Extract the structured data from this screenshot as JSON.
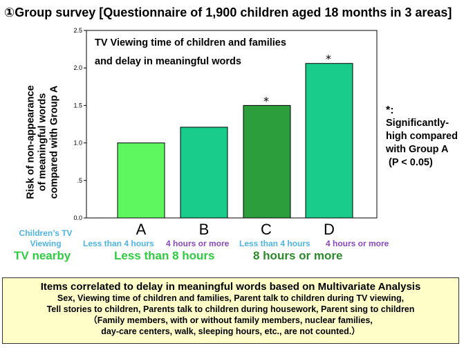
{
  "title": "①Group survey [Questionnaire of 1,900 children aged 18 months in 3 areas]",
  "chart_data": {
    "type": "bar",
    "title_line1": "TV Viewing time of children and families",
    "title_line2": "and delay in meaningful words",
    "ylabel_lines": [
      "Risk of non-appearance",
      "of meaningful words",
      "compared with Group A"
    ],
    "ylim": [
      0,
      2.5
    ],
    "yticks": [
      "0.0",
      ".5",
      "1.0",
      "1.5",
      "2.0",
      "2.5"
    ],
    "ytick_values": [
      0,
      0.5,
      1.0,
      1.5,
      2.0,
      2.5
    ],
    "categories": [
      "A",
      "B",
      "C",
      "D"
    ],
    "values": [
      1.0,
      1.21,
      1.5,
      2.06
    ],
    "colors": [
      "#5ff75f",
      "#19cc8c",
      "#2c9e3c",
      "#19cc8c"
    ],
    "significant": [
      false,
      false,
      true,
      true
    ],
    "significance_mark": "*",
    "grid": false
  },
  "sub_labels": {
    "A": "Less than 4 hours",
    "B": "4 hours or more",
    "C": "Less than 4 hours",
    "D": "4 hours or more"
  },
  "children_tv_viewing": "Children’s TV Viewing",
  "tv_nearby": "TV nearby",
  "less_than_8": "Less than 8 hours",
  "more_than_8": "8 hours or more",
  "note": {
    "star": "*:",
    "text": "Significantly-high compared with Group A",
    "p": "(P < 0.05)"
  },
  "bottom": {
    "heading": "Items correlated to delay in meaningful words based on Multivariate Analysis",
    "line1": "Sex, Viewing time of children and families, Parent talk to children during TV viewing,",
    "line2": "Tell stories to children, Parents talk to children during housework, Parent sing to children",
    "line3": "（Family members, with or without family members, nuclear families,",
    "line4": "day-care centers, walk, sleeping hours, etc., are not counted.）"
  }
}
